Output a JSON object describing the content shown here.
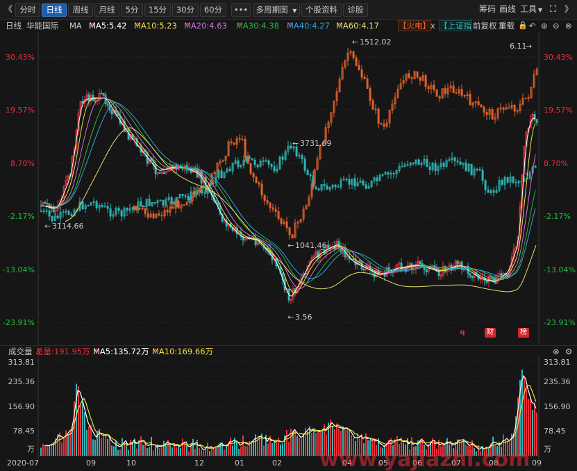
{
  "toolbar": {
    "back": "《",
    "periods": [
      "分时",
      "日线",
      "周线",
      "月线",
      "5分",
      "15分",
      "30分",
      "60分"
    ],
    "active_period": "日线",
    "more": "•••",
    "multi_period": "多周期图",
    "stock_info": "个股资料",
    "diagnose": "诊股",
    "chips": "筹码",
    "draw": "画线",
    "tools": "工具",
    "forward": "》"
  },
  "indicator_bar": {
    "period": "日线",
    "stock_name": "华能国际",
    "ma_label": "MA",
    "ma5": "MA5:5.42",
    "ma10": "MA10:5.23",
    "ma20": "MA20:4.63",
    "ma30": "MA30:4.38",
    "ma40": "MA40:4.27",
    "ma60": "MA60:4.17",
    "compare1": "【火电】",
    "close_x": "x",
    "compare2": "【上证指",
    "fq": "前复权",
    "reload": "重载"
  },
  "main_chart": {
    "y_labels": [
      "30.43%",
      "19.57%",
      "8.70%",
      "-2.17%",
      "-13.04%",
      "-23.91%"
    ],
    "annotations": {
      "sh_high": "1512.02",
      "idx_high": "3731.69",
      "idx_low": "3114.66",
      "sh_low": "1041.46",
      "price_low": "3.56",
      "price_high": "6.11"
    },
    "markers": [
      "q",
      "财",
      "榜"
    ]
  },
  "volume": {
    "title": "成交量",
    "total": "总量:191.95万",
    "ma5": "MA5:135.72万",
    "ma10": "MA10:169.66万",
    "y_labels": [
      "313.81",
      "235.36",
      "156.90",
      "78.45",
      "万"
    ],
    "x_labels": [
      "2020-07",
      "09",
      "10",
      "12",
      "01",
      "02",
      "04",
      "05",
      "06",
      "07",
      "08",
      "09"
    ]
  },
  "colors": {
    "up": "#e8303a",
    "down": "#2fb5b5",
    "orange": "#e0622a",
    "ma5": "#ffffff",
    "ma10": "#f0e040",
    "ma20": "#d070e0",
    "ma30": "#30b040",
    "ma40": "#2fa4e0",
    "ma60": "#e8e070"
  },
  "watermark": "www.yajiazhi.com"
}
